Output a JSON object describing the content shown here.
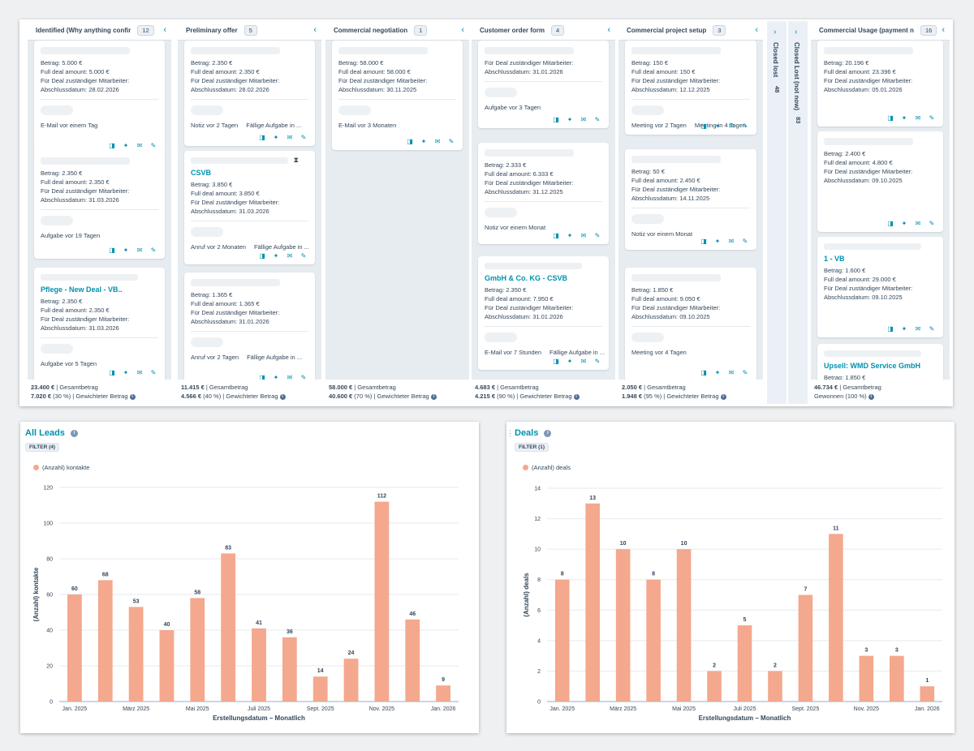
{
  "board": {
    "columns": [
      {
        "title": "Identified (Why anything confir",
        "count": "12",
        "footer_total": "23.400 €",
        "footer_total_label": " | Gesamtbetrag",
        "footer_weighted": "7.020 €",
        "footer_weighted_label": " (30 %) | Gewichteter Betrag",
        "cards": [
          {
            "lines": [
              "Betrag: 5.000 €",
              "Full deal amount: 5.000 €",
              "Für Deal zuständiger Mitarbeiter:",
              "Abschlussdatum: 28.02.2026"
            ],
            "activity": [
              "E-Mail vor einem Tag"
            ]
          },
          {
            "lines": [
              "Betrag: 2.350 €",
              "Full deal amount: 2.350 €",
              "Für Deal zuständiger Mitarbeiter:",
              "Abschlussdatum: 31.03.2026"
            ],
            "activity": [
              "Aufgabe vor 19 Tagen"
            ]
          },
          {
            "title": "Pflege - New Deal - VB..",
            "lines": [
              "Betrag: 2.350 €",
              "Full deal amount: 2.350 €",
              "Für Deal zuständiger Mitarbeiter:",
              "Abschlussdatum: 31.03.2026"
            ],
            "activity": [
              "Aufgabe vor 5 Tagen"
            ]
          }
        ]
      },
      {
        "title": "Preliminary offer",
        "count": "5",
        "footer_total": "11.415 €",
        "footer_total_label": " | Gesamtbetrag",
        "footer_weighted": "4.566 €",
        "footer_weighted_label": " (40 %) | Gewichteter Betrag",
        "cards": [
          {
            "lines": [
              "Betrag: 2.350 €",
              "Full deal amount: 2.350 €",
              "Für Deal zuständiger Mitarbeiter:",
              "Abschlussdatum: 28.02.2026"
            ],
            "activity": [
              "Notiz vor 2 Tagen",
              "Fällige Aufgabe in ..."
            ]
          },
          {
            "title": "CSVB",
            "lines": [
              "Betrag: 3.850 €",
              "Full deal amount: 3.850 €",
              "Für Deal zuständiger Mitarbeiter:",
              "Abschlussdatum: 31.03.2026"
            ],
            "activity": [
              "Anruf vor 2 Monaten",
              "Fällige Aufgabe in ..."
            ]
          },
          {
            "lines": [
              "Betrag: 1.365 €",
              "Full deal amount: 1.365 €",
              "Für Deal zuständiger Mitarbeiter:",
              "Abschlussdatum: 31.01.2026"
            ],
            "activity": [
              "Anruf vor 2 Tagen",
              "Fällige Aufgabe in ..."
            ]
          }
        ]
      },
      {
        "title": "Commercial negotiation",
        "count": "1",
        "footer_total": "58.000 €",
        "footer_total_label": " | Gesamtbetrag",
        "footer_weighted": "40.600 €",
        "footer_weighted_label": " (70 %) | Gewichteter Betrag",
        "cards": [
          {
            "lines": [
              "Betrag: 58.000 €",
              "Full deal amount: 58.000 €",
              "Für Deal zuständiger Mitarbeiter:",
              "Abschlussdatum: 30.11.2025"
            ],
            "activity": [
              "E-Mail vor 3 Monaten"
            ]
          }
        ]
      },
      {
        "title": "Customer order form",
        "count": "4",
        "footer_total": "4.683 €",
        "footer_total_label": " | Gesamtbetrag",
        "footer_weighted": "4.215 €",
        "footer_weighted_label": " (90 %) | Gewichteter Betrag",
        "cards": [
          {
            "lines": [
              "Für Deal zuständiger Mitarbeiter:",
              "Abschlussdatum: 31.01.2026"
            ],
            "activity": [
              "Aufgabe vor 3 Tagen"
            ]
          },
          {
            "lines": [
              "Betrag: 2.333 €",
              "Full deal amount: 6.333 €",
              "Für Deal zuständiger Mitarbeiter:",
              "Abschlussdatum: 31.12.2025"
            ],
            "activity": [
              "Notiz vor einem Monat"
            ]
          },
          {
            "title": "GmbH & Co. KG - CSVB",
            "lines": [
              "Betrag: 2.350 €",
              "Full deal amount: 7.950 €",
              "Für Deal zuständiger Mitarbeiter:",
              "Abschlussdatum: 31.01.2026"
            ],
            "activity": [
              "E-Mail vor 7 Stunden",
              "Fällige Aufgabe in ..."
            ]
          }
        ]
      },
      {
        "title": "Commercial project setup",
        "count": "3",
        "footer_total": "2.050 €",
        "footer_total_label": " | Gesamtbetrag",
        "footer_weighted": "1.948 €",
        "footer_weighted_label": " (95 %) | Gewichteter Betrag",
        "cards": [
          {
            "lines": [
              "Betrag: 150 €",
              "Full deal amount: 150 €",
              "Für Deal zuständiger Mitarbeiter:",
              "Abschlussdatum: 12.12.2025"
            ],
            "activity": [
              "Meeting vor 2 Tagen",
              "Meeting in 4 Tagen"
            ]
          },
          {
            "lines": [
              "Betrag: 50 €",
              "Full deal amount: 2.450 €",
              "Für Deal zuständiger Mitarbeiter:",
              "Abschlussdatum: 14.11.2025"
            ],
            "activity": [
              "Notiz vor einem Monat"
            ]
          },
          {
            "lines": [
              "Betrag: 1.850 €",
              "Full deal amount: 9.050 €",
              "Für Deal zuständiger Mitarbeiter:",
              "Abschlussdatum: 09.10.2025"
            ],
            "activity": [
              "Meeting vor 4 Tagen"
            ]
          }
        ]
      },
      {
        "title": "Commercial Usage (payment n",
        "count": "16",
        "footer_total": "46.734 €",
        "footer_total_label": " | Gesamtbetrag",
        "footer_weighted": "",
        "footer_weighted_label": "Gewonnen (100 %)",
        "cards": [
          {
            "lines": [
              "Betrag: 20.196 €",
              "Full deal amount: 23.396 €",
              "Für Deal zuständiger Mitarbeiter:",
              "Abschlussdatum: 05.01.2026"
            ],
            "activity": []
          },
          {
            "lines": [
              "Betrag: 2.400 €",
              "Full deal amount: 4.800 €",
              "Für Deal zuständiger Mitarbeiter:",
              "Abschlussdatum: 09.10.2025"
            ],
            "activity": []
          },
          {
            "title": "1 - VB",
            "lines": [
              "Betrag: 1.600 €",
              "Full deal amount: 29.000 €",
              "Für Deal zuständiger Mitarbeiter:",
              "Abschlussdatum: 09.10.2025"
            ],
            "activity": []
          },
          {
            "title": "Upsell: WMD Service GmbH",
            "lines": [
              "Betrag: 1.850 €",
              "Full deal amount: 8.250 €"
            ],
            "activity": []
          }
        ]
      }
    ],
    "collapsed": [
      {
        "title": "Closed lost",
        "count": "48"
      },
      {
        "title": "Closed Lost (not now)",
        "count": "83"
      }
    ]
  },
  "leads_report": {
    "title": "All Leads",
    "filter": "FILTER (4)",
    "legend": "(Anzahl) kontakte"
  },
  "deals_report": {
    "title": "Deals",
    "filter": "FILTER (1)",
    "legend": "(Anzahl) deals"
  },
  "chart_data": [
    {
      "type": "bar",
      "title": "All Leads",
      "xlabel": "Erstellungsdatum – Monatlich",
      "ylabel": "(Anzahl) kontakte",
      "ylim": [
        0,
        120
      ],
      "yticks": [
        0,
        20,
        40,
        60,
        80,
        100,
        120
      ],
      "grid": true,
      "legend": "top-left",
      "color": "#f4a88d",
      "categories": [
        "Jan. 2025",
        "Feb. 2025",
        "März 2025",
        "Apr. 2025",
        "Mai 2025",
        "Juni 2025",
        "Juli 2025",
        "Aug. 2025",
        "Sept. 2025",
        "Okt. 2025",
        "Nov. 2025",
        "Dez. 2025",
        "Jan. 2026"
      ],
      "tick_labels": [
        "Jan. 2025",
        "",
        "März 2025",
        "",
        "Mai 2025",
        "",
        "Juli 2025",
        "",
        "Sept. 2025",
        "",
        "Nov. 2025",
        "",
        "Jan. 2026"
      ],
      "series": [
        {
          "name": "(Anzahl) kontakte",
          "values": [
            60,
            68,
            53,
            40,
            58,
            83,
            41,
            36,
            14,
            24,
            112,
            46,
            9
          ]
        }
      ]
    },
    {
      "type": "bar",
      "title": "Deals",
      "xlabel": "Erstellungsdatum – Monatlich",
      "ylabel": "(Anzahl) deals",
      "ylim": [
        0,
        14
      ],
      "yticks": [
        0,
        2,
        4,
        6,
        8,
        10,
        12,
        14
      ],
      "grid": true,
      "legend": "top-left",
      "color": "#f4a88d",
      "categories": [
        "Jan. 2025",
        "Feb. 2025",
        "März 2025",
        "Apr. 2025",
        "Mai 2025",
        "Juni 2025",
        "Juli 2025",
        "Aug. 2025",
        "Sept. 2025",
        "Okt. 2025",
        "Nov. 2025",
        "Dez. 2025",
        "Jan. 2026"
      ],
      "tick_labels": [
        "Jan. 2025",
        "",
        "März 2025",
        "",
        "Mai 2025",
        "",
        "Juli 2025",
        "",
        "Sept. 2025",
        "",
        "Nov. 2025",
        "",
        "Jan. 2026"
      ],
      "series": [
        {
          "name": "(Anzahl) deals",
          "values": [
            8,
            13,
            10,
            8,
            10,
            2,
            5,
            2,
            7,
            11,
            3,
            3,
            1
          ]
        }
      ]
    }
  ]
}
